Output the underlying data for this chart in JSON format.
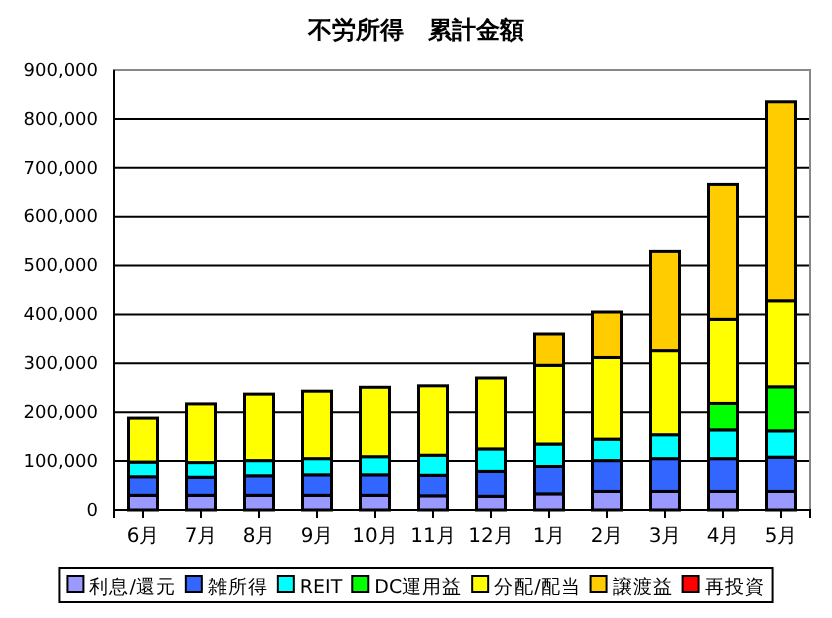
{
  "chart_data": {
    "type": "bar",
    "title": "不労所得　累計金額",
    "stacked": true,
    "categories": [
      "6月",
      "7月",
      "8月",
      "9月",
      "10月",
      "11月",
      "12月",
      "1月",
      "2月",
      "3月",
      "4月",
      "5月"
    ],
    "series": [
      {
        "name": "利息/還元",
        "color": "#9999ff",
        "values": [
          30000,
          30000,
          30000,
          30000,
          30000,
          29000,
          28000,
          33000,
          38000,
          38000,
          38000,
          38000
        ]
      },
      {
        "name": "雑所得",
        "color": "#3366ff",
        "values": [
          38000,
          37000,
          40000,
          42000,
          42000,
          42000,
          51000,
          56000,
          63000,
          67000,
          67000,
          70000
        ]
      },
      {
        "name": "REIT",
        "color": "#00ffff",
        "values": [
          30000,
          30000,
          31000,
          33000,
          37000,
          41000,
          46000,
          46000,
          44000,
          49000,
          59000,
          54000
        ]
      },
      {
        "name": "DC運用益",
        "color": "#00ff00",
        "values": [
          0,
          0,
          0,
          0,
          0,
          0,
          0,
          0,
          0,
          0,
          54000,
          90000
        ]
      },
      {
        "name": "分配/配当",
        "color": "#ffff00",
        "values": [
          90000,
          120000,
          136000,
          138000,
          142000,
          142000,
          145000,
          161000,
          167000,
          172000,
          172000,
          176000
        ]
      },
      {
        "name": "譲渡益",
        "color": "#ffcc00",
        "values": [
          0,
          0,
          0,
          0,
          0,
          0,
          0,
          64000,
          93000,
          203000,
          276000,
          407000
        ]
      },
      {
        "name": "再投資",
        "color": "#ff0000",
        "values": [
          0,
          0,
          0,
          0,
          0,
          0,
          0,
          0,
          0,
          0,
          0,
          0
        ]
      }
    ],
    "ylim": [
      0,
      900000
    ],
    "yticks": [
      0,
      {
        "value": 100000,
        "label": "100,000"
      },
      {
        "value": 200000,
        "label": "200,000"
      },
      {
        "value": 300000,
        "label": "300,000"
      },
      {
        "value": 400000,
        "label": "400,000"
      },
      {
        "value": 500000,
        "label": "500,000"
      },
      {
        "value": 600000,
        "label": "600,000"
      },
      {
        "value": 700000,
        "label": "700,000"
      },
      {
        "value": 800000,
        "label": "800,000"
      },
      {
        "value": 900000,
        "label": "900,000"
      }
    ],
    "grid": "y",
    "legend": "bottom"
  }
}
